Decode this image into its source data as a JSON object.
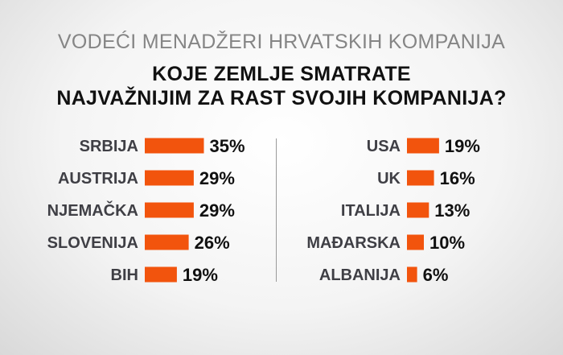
{
  "header": {
    "subtitle": "VODEĆI MENADŽERI HRVATSKIH KOMPANIJA",
    "title_line1": "KOJE ZEMLJE SMATRATE",
    "title_line2": "NAJVAŽNIJIM ZA RAST SVOJIH KOMPANIJA?"
  },
  "colors": {
    "bar": "#f2540d",
    "label": "#3f3f45",
    "value": "#111111"
  },
  "chart_data": {
    "type": "bar",
    "orientation": "horizontal",
    "unit": "%",
    "title": "KOJE ZEMLJE SMATRATE NAJVAŽNIJIM ZA RAST SVOJIH KOMPANIJA?",
    "subtitle": "VODEĆI MENADŽERI HRVATSKIH KOMPANIJA",
    "grid": false,
    "categories": [
      "SRBIJA",
      "AUSTRIJA",
      "NJEMAČKA",
      "SLOVENIJA",
      "BIH",
      "USA",
      "UK",
      "ITALIJA",
      "MAĐARSKA",
      "ALBANIJA"
    ],
    "values": [
      35,
      29,
      29,
      26,
      19,
      19,
      16,
      13,
      10,
      6
    ],
    "value_labels": [
      "35%",
      "29%",
      "29%",
      "26%",
      "19%",
      "19%",
      "16%",
      "13%",
      "10%",
      "6%"
    ],
    "panels": [
      {
        "items": [
          0,
          1,
          2,
          3,
          4
        ]
      },
      {
        "items": [
          5,
          6,
          7,
          8,
          9
        ]
      }
    ]
  }
}
